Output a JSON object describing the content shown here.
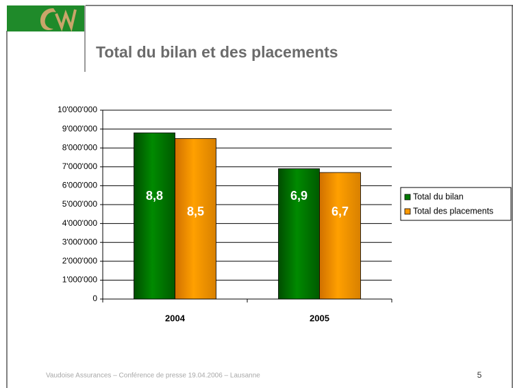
{
  "title": "Total du bilan et des placements",
  "footer": "Vaudoise Assurances – Conférence de presse 19.04.2006 – Lausanne",
  "page_number": "5",
  "chart_data": {
    "type": "bar",
    "categories": [
      "2004",
      "2005"
    ],
    "series": [
      {
        "name": "Total du bilan",
        "color": "#007a00",
        "values": [
          8800000,
          6900000
        ],
        "value_labels": [
          "8,8",
          "6,9"
        ]
      },
      {
        "name": "Total des placements",
        "color": "#ff9900",
        "values": [
          8500000,
          6700000
        ],
        "value_labels": [
          "8,5",
          "6,7"
        ]
      }
    ],
    "ylim": [
      0,
      10000000
    ],
    "yticks": [
      0,
      {
        "value": 1000000,
        "label": "1'000'000"
      },
      {
        "value": 2000000,
        "label": "2'000'000"
      },
      {
        "value": 3000000,
        "label": "3'000'000"
      },
      {
        "value": 4000000,
        "label": "4'000'000"
      },
      {
        "value": 5000000,
        "label": "5'000'000"
      },
      {
        "value": 6000000,
        "label": "6'000'000"
      },
      {
        "value": 7000000,
        "label": "7'000'000"
      },
      {
        "value": 8000000,
        "label": "8'000'000"
      },
      {
        "value": 9000000,
        "label": "9'000'000"
      },
      {
        "value": 10000000,
        "label": "10'000'000"
      }
    ],
    "grid": true,
    "legend": "right"
  }
}
